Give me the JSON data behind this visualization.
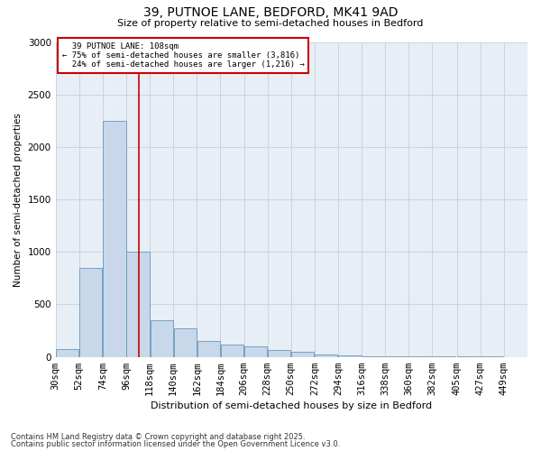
{
  "title": "39, PUTNOE LANE, BEDFORD, MK41 9AD",
  "subtitle": "Size of property relative to semi-detached houses in Bedford",
  "xlabel": "Distribution of semi-detached houses by size in Bedford",
  "ylabel": "Number of semi-detached properties",
  "property_label": "39 PUTNOE LANE: 108sqm",
  "pct_smaller": "75% of semi-detached houses are smaller (3,816)",
  "pct_larger": "24% of semi-detached houses are larger (1,216)",
  "property_size": 108,
  "bin_edges": [
    30,
    52,
    74,
    96,
    118,
    140,
    162,
    184,
    206,
    228,
    250,
    272,
    294,
    316,
    338,
    360,
    382,
    405,
    427,
    449,
    471
  ],
  "bar_heights": [
    75,
    850,
    2250,
    1000,
    350,
    270,
    155,
    120,
    100,
    70,
    45,
    20,
    12,
    7,
    4,
    2,
    2,
    8,
    2,
    1,
    0
  ],
  "bar_color": "#c8d8ea",
  "bar_edge_color": "#6699bb",
  "vline_color": "#cc0000",
  "annotation_box_color": "#cc0000",
  "grid_color": "#c8d4e0",
  "background_color": "#e8eef5",
  "ylim": [
    0,
    3000
  ],
  "yticks": [
    0,
    500,
    1000,
    1500,
    2000,
    2500,
    3000
  ],
  "footer1": "Contains HM Land Registry data © Crown copyright and database right 2025.",
  "footer2": "Contains public sector information licensed under the Open Government Licence v3.0."
}
